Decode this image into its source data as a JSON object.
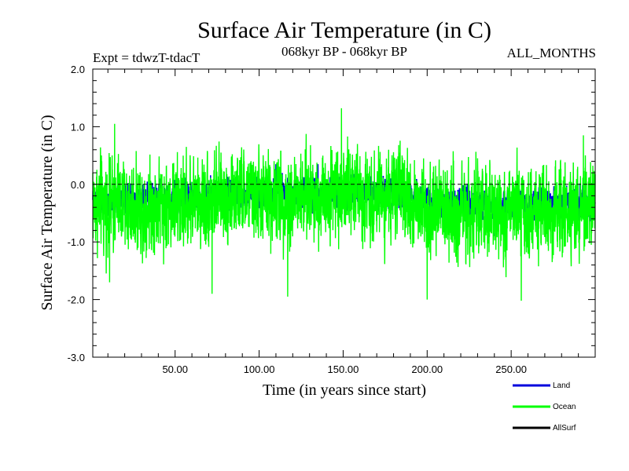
{
  "header": {
    "title": "Surface Air Temperature (in C)",
    "expt": "Expt = tdwzT-tdacT",
    "period": "068kyr BP - 068kyr BP",
    "months": "ALL_MONTHS"
  },
  "chart_data": {
    "type": "line",
    "title": "Surface Air Temperature (in C)",
    "xlabel": "Time (in years since start)",
    "ylabel": "Surface Air Temperature (in C)",
    "xlim": [
      1,
      300
    ],
    "ylim": [
      -3.0,
      2.0
    ],
    "x_ticks": [
      50,
      100,
      150,
      200,
      250
    ],
    "x_tick_labels": [
      "50.00",
      "100.00",
      "150.00",
      "200.00",
      "250.00"
    ],
    "y_ticks": [
      -3.0,
      -2.0,
      -1.0,
      0.0,
      1.0,
      2.0
    ],
    "y_tick_labels": [
      "-3.0",
      "-2.0",
      "-1.0",
      "0.0",
      "1.0",
      "2.0"
    ],
    "reference_line": 0.0,
    "grid": false,
    "legend_position": "bottom-right",
    "series": [
      {
        "name": "Land",
        "color": "#00ff00",
        "baseline": [
          [
            1,
            -0.35
          ],
          [
            30,
            -0.4
          ],
          [
            60,
            -0.3
          ],
          [
            90,
            -0.2
          ],
          [
            120,
            -0.25
          ],
          [
            150,
            -0.1
          ],
          [
            180,
            -0.2
          ],
          [
            210,
            -0.45
          ],
          [
            240,
            -0.55
          ],
          [
            270,
            -0.45
          ],
          [
            300,
            -0.5
          ]
        ],
        "amplitude": 0.55,
        "extremes": [
          [
            1,
            0.2
          ],
          [
            11,
            -1.7
          ],
          [
            14,
            1.05
          ],
          [
            72,
            -1.9
          ],
          [
            117,
            -1.95
          ],
          [
            149,
            1.32
          ],
          [
            200,
            -2.0
          ],
          [
            256,
            -2.02
          ],
          [
            293,
            0.85
          ]
        ]
      },
      {
        "name": "Ocean",
        "color": "#0000dd",
        "baseline": [
          [
            1,
            -0.3
          ],
          [
            30,
            -0.25
          ],
          [
            60,
            -0.2
          ],
          [
            90,
            -0.15
          ],
          [
            120,
            -0.15
          ],
          [
            150,
            -0.1
          ],
          [
            180,
            -0.15
          ],
          [
            210,
            -0.3
          ],
          [
            240,
            -0.4
          ],
          [
            270,
            -0.3
          ],
          [
            300,
            -0.35
          ]
        ],
        "amplitude": 0.18,
        "extremes": [
          [
            110,
            0.35
          ],
          [
            135,
            0.35
          ],
          [
            240,
            -0.9
          ]
        ]
      },
      {
        "name": "AllSurf",
        "color": "#000000",
        "baseline": [],
        "amplitude": 0,
        "extremes": []
      }
    ]
  }
}
